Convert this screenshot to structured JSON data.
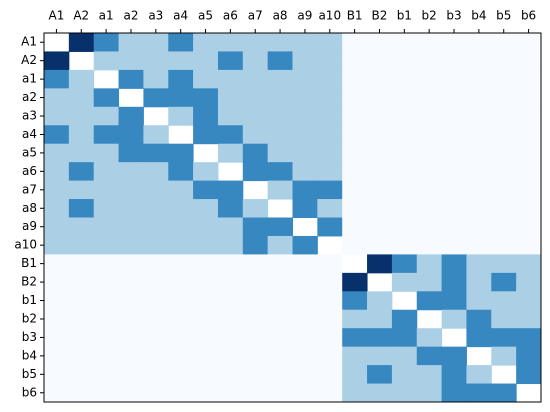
{
  "chart_data": {
    "type": "heatmap",
    "x": [
      "A1",
      "A2",
      "a1",
      "a2",
      "a3",
      "a4",
      "a5",
      "a6",
      "a7",
      "a8",
      "a9",
      "a10",
      "B1",
      "B2",
      "b1",
      "b2",
      "b3",
      "b4",
      "b5",
      "b6"
    ],
    "y": [
      "A1",
      "A2",
      "a1",
      "a2",
      "a3",
      "a4",
      "a5",
      "a6",
      "a7",
      "a8",
      "a9",
      "a10",
      "B1",
      "B2",
      "b1",
      "b2",
      "b3",
      "b4",
      "b5",
      "b6"
    ],
    "colors": [
      "#f7fbff",
      "#abd0e6",
      "#3787c0",
      "#08306b"
    ],
    "values": [
      [
        null,
        3,
        2,
        1,
        1,
        2,
        1,
        1,
        1,
        1,
        1,
        1,
        0,
        0,
        0,
        0,
        0,
        0,
        0,
        0
      ],
      [
        3,
        null,
        1,
        1,
        1,
        1,
        1,
        2,
        1,
        2,
        1,
        1,
        0,
        0,
        0,
        0,
        0,
        0,
        0,
        0
      ],
      [
        2,
        1,
        null,
        2,
        1,
        2,
        1,
        1,
        1,
        1,
        1,
        1,
        0,
        0,
        0,
        0,
        0,
        0,
        0,
        0
      ],
      [
        1,
        1,
        2,
        null,
        2,
        2,
        2,
        1,
        1,
        1,
        1,
        1,
        0,
        0,
        0,
        0,
        0,
        0,
        0,
        0
      ],
      [
        1,
        1,
        1,
        2,
        null,
        1,
        2,
        1,
        1,
        1,
        1,
        1,
        0,
        0,
        0,
        0,
        0,
        0,
        0,
        0
      ],
      [
        2,
        1,
        2,
        2,
        1,
        null,
        2,
        2,
        1,
        1,
        1,
        1,
        0,
        0,
        0,
        0,
        0,
        0,
        0,
        0
      ],
      [
        1,
        1,
        1,
        2,
        2,
        2,
        null,
        1,
        2,
        1,
        1,
        1,
        0,
        0,
        0,
        0,
        0,
        0,
        0,
        0
      ],
      [
        1,
        2,
        1,
        1,
        1,
        2,
        1,
        null,
        2,
        2,
        1,
        1,
        0,
        0,
        0,
        0,
        0,
        0,
        0,
        0
      ],
      [
        1,
        1,
        1,
        1,
        1,
        1,
        2,
        2,
        null,
        1,
        2,
        2,
        0,
        0,
        0,
        0,
        0,
        0,
        0,
        0
      ],
      [
        1,
        2,
        1,
        1,
        1,
        1,
        1,
        2,
        1,
        null,
        2,
        1,
        0,
        0,
        0,
        0,
        0,
        0,
        0,
        0
      ],
      [
        1,
        1,
        1,
        1,
        1,
        1,
        1,
        1,
        2,
        2,
        null,
        2,
        0,
        0,
        0,
        0,
        0,
        0,
        0,
        0
      ],
      [
        1,
        1,
        1,
        1,
        1,
        1,
        1,
        1,
        2,
        1,
        2,
        null,
        0,
        0,
        0,
        0,
        0,
        0,
        0,
        0
      ],
      [
        0,
        0,
        0,
        0,
        0,
        0,
        0,
        0,
        0,
        0,
        0,
        0,
        null,
        3,
        2,
        1,
        2,
        1,
        1,
        1
      ],
      [
        0,
        0,
        0,
        0,
        0,
        0,
        0,
        0,
        0,
        0,
        0,
        0,
        3,
        null,
        1,
        1,
        2,
        1,
        2,
        1
      ],
      [
        0,
        0,
        0,
        0,
        0,
        0,
        0,
        0,
        0,
        0,
        0,
        0,
        2,
        1,
        null,
        2,
        2,
        1,
        1,
        1
      ],
      [
        0,
        0,
        0,
        0,
        0,
        0,
        0,
        0,
        0,
        0,
        0,
        0,
        1,
        1,
        2,
        null,
        1,
        2,
        1,
        1
      ],
      [
        0,
        0,
        0,
        0,
        0,
        0,
        0,
        0,
        0,
        0,
        0,
        0,
        2,
        2,
        2,
        1,
        null,
        2,
        2,
        2
      ],
      [
        0,
        0,
        0,
        0,
        0,
        0,
        0,
        0,
        0,
        0,
        0,
        0,
        1,
        1,
        1,
        2,
        2,
        null,
        1,
        2
      ],
      [
        0,
        0,
        0,
        0,
        0,
        0,
        0,
        0,
        0,
        0,
        0,
        0,
        1,
        2,
        1,
        1,
        2,
        1,
        null,
        2
      ],
      [
        0,
        0,
        0,
        0,
        0,
        0,
        0,
        0,
        0,
        0,
        0,
        0,
        1,
        1,
        1,
        1,
        2,
        2,
        2,
        null
      ]
    ]
  }
}
